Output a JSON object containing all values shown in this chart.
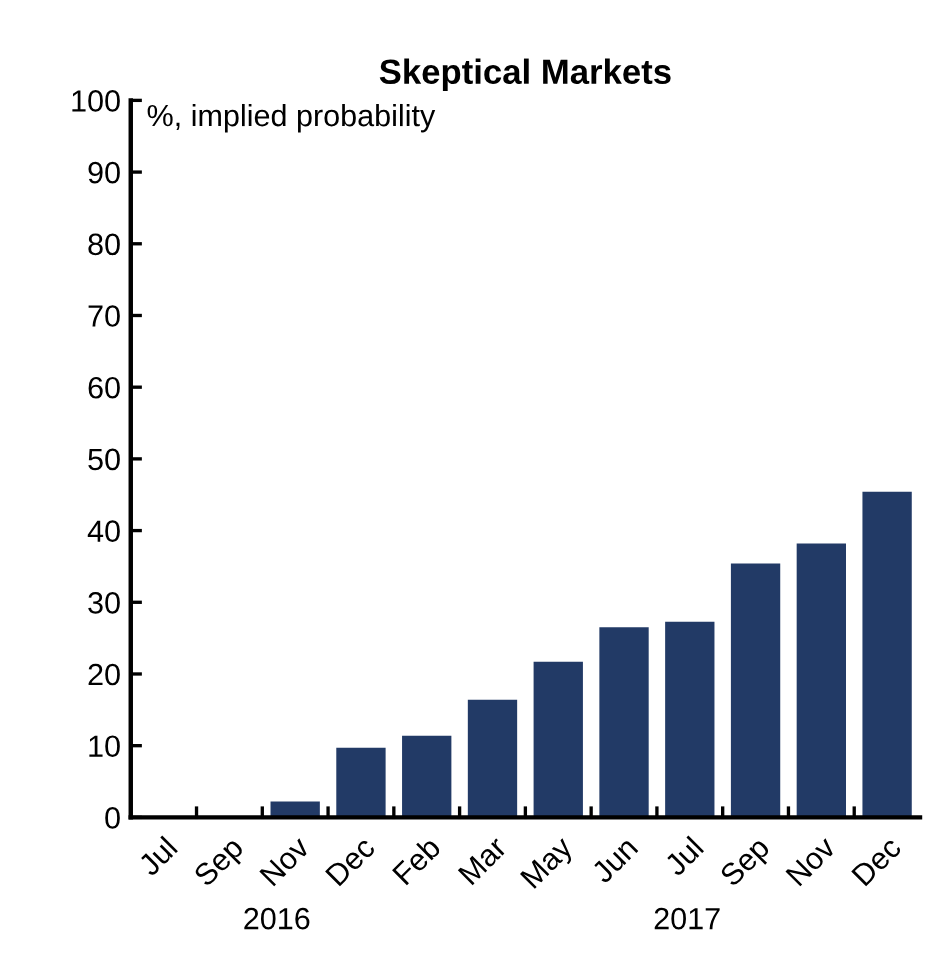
{
  "chart_data": {
    "type": "bar",
    "title": "Skeptical Markets",
    "ylabel": "%, implied probability",
    "categories": [
      "Jul",
      "Sep",
      "Nov",
      "Dec",
      "Feb",
      "Mar",
      "May",
      "Jun",
      "Jul",
      "Sep",
      "Nov",
      "Dec"
    ],
    "values": [
      0,
      0,
      2.2,
      9.7,
      11.4,
      16.4,
      21.7,
      26.5,
      27.3,
      35.4,
      38.2,
      45.4
    ],
    "color": "#223a66",
    "ylim": [
      0,
      100
    ],
    "yticks": [
      0,
      10,
      20,
      30,
      40,
      50,
      60,
      70,
      80,
      90,
      100
    ],
    "annotations": [
      "2016",
      "2017"
    ],
    "grid": false
  }
}
